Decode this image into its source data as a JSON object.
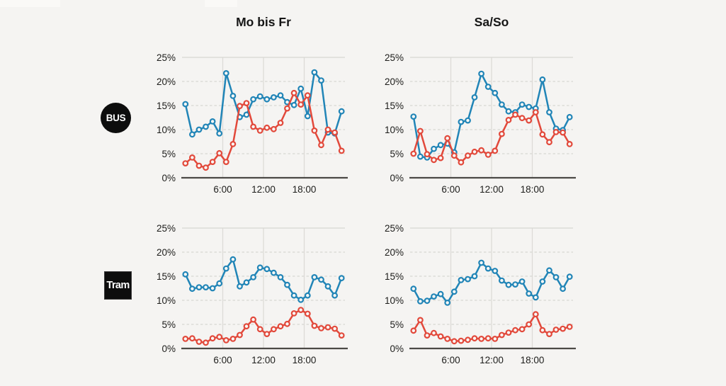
{
  "page": {
    "background_color": "#f5f4f2"
  },
  "header": {
    "columns": [
      {
        "label": "Mo bis Fr"
      },
      {
        "label": "Sa/So"
      }
    ]
  },
  "row_badges": [
    {
      "label": "BUS",
      "shape": "circle",
      "background": "#0d0d0d",
      "text_color": "#ffffff"
    },
    {
      "label": "Tram",
      "shape": "square",
      "background": "#0d0d0d",
      "text_color": "#ffffff"
    }
  ],
  "colors": {
    "blue_series": "#2185b7",
    "red_series": "#e2493b",
    "axis": "#4b4946",
    "grid": "#d8d7d3",
    "grid_vertical": "#dcdbd7",
    "text": "#1d1d1b",
    "marker_fill": "#f9f8f6"
  },
  "axes": {
    "xlim": [
      0,
      24
    ],
    "ylim": [
      0,
      25
    ],
    "x_ticks": [
      {
        "label": "6:00",
        "value": 6
      },
      {
        "label": "12:00",
        "value": 12
      },
      {
        "label": "18:00",
        "value": 18
      }
    ],
    "y_ticks": [
      {
        "label": "25%",
        "value": 25
      },
      {
        "label": "20%",
        "value": 20
      },
      {
        "label": "15%",
        "value": 15
      },
      {
        "label": "10%",
        "value": 10
      },
      {
        "label": "5%",
        "value": 5
      },
      {
        "label": "0%",
        "value": 0
      }
    ],
    "grid": "horizontal dashed gridlines at 5-20%, solid light line at 25%, solid dark baseline at 0%, vertical gridlines at x ticks"
  },
  "chart_data": [
    {
      "id": "bus-weekday",
      "type": "line",
      "row": "BUS",
      "column": "Mo bis Fr",
      "x": [
        0.5,
        1.5,
        2.5,
        3.5,
        4.5,
        5.5,
        6.5,
        7.5,
        8.5,
        9.5,
        10.5,
        11.5,
        12.5,
        13.5,
        14.5,
        15.5,
        16.5,
        17.5,
        18.5,
        19.5,
        20.5,
        21.5,
        22.5,
        23.5
      ],
      "series": [
        {
          "name": "blue",
          "color_key": "blue_series",
          "values": [
            15.3,
            9.0,
            10.0,
            10.6,
            11.7,
            9.2,
            21.7,
            17.0,
            12.6,
            13.1,
            16.3,
            16.9,
            16.3,
            16.7,
            17.1,
            15.7,
            15.1,
            18.5,
            12.8,
            21.9,
            20.2,
            9.4,
            9.2,
            13.8
          ]
        },
        {
          "name": "red",
          "color_key": "red_series",
          "values": [
            3.0,
            4.2,
            2.5,
            2.1,
            3.3,
            5.1,
            3.3,
            7.0,
            14.9,
            15.5,
            10.6,
            9.8,
            10.4,
            10.1,
            11.4,
            14.4,
            17.6,
            15.2,
            17.1,
            9.8,
            6.8,
            10.0,
            9.4,
            5.6
          ]
        }
      ]
    },
    {
      "id": "bus-weekend",
      "type": "line",
      "row": "BUS",
      "column": "Sa/So",
      "x": [
        0.5,
        1.5,
        2.5,
        3.5,
        4.5,
        5.5,
        6.5,
        7.5,
        8.5,
        9.5,
        10.5,
        11.5,
        12.5,
        13.5,
        14.5,
        15.5,
        16.5,
        17.5,
        18.5,
        19.5,
        20.5,
        21.5,
        22.5,
        23.5
      ],
      "series": [
        {
          "name": "blue",
          "color_key": "blue_series",
          "values": [
            12.7,
            4.4,
            4.2,
            6.0,
            6.8,
            7.1,
            5.3,
            11.6,
            11.9,
            16.7,
            21.6,
            18.9,
            17.6,
            15.2,
            13.8,
            13.6,
            15.2,
            14.7,
            14.4,
            20.4,
            13.6,
            10.2,
            9.9,
            12.6
          ]
        },
        {
          "name": "red",
          "color_key": "red_series",
          "values": [
            5.0,
            9.7,
            4.9,
            3.7,
            4.1,
            8.2,
            4.6,
            3.2,
            4.6,
            5.4,
            5.7,
            4.8,
            5.6,
            9.1,
            12.0,
            13.1,
            12.4,
            11.9,
            13.6,
            9.0,
            7.4,
            9.5,
            9.4,
            7.0
          ]
        }
      ]
    },
    {
      "id": "tram-weekday",
      "type": "line",
      "row": "Tram",
      "column": "Mo bis Fr",
      "x": [
        0.5,
        1.5,
        2.5,
        3.5,
        4.5,
        5.5,
        6.5,
        7.5,
        8.5,
        9.5,
        10.5,
        11.5,
        12.5,
        13.5,
        14.5,
        15.5,
        16.5,
        17.5,
        18.5,
        19.5,
        20.5,
        21.5,
        22.5,
        23.5
      ],
      "series": [
        {
          "name": "blue",
          "color_key": "blue_series",
          "values": [
            15.4,
            12.4,
            12.7,
            12.7,
            12.5,
            13.5,
            16.6,
            18.5,
            12.9,
            13.7,
            14.8,
            16.8,
            16.5,
            15.7,
            14.8,
            13.2,
            11.0,
            10.1,
            11.0,
            14.8,
            14.3,
            12.9,
            11.0,
            14.6
          ]
        },
        {
          "name": "red",
          "color_key": "red_series",
          "values": [
            2.0,
            2.1,
            1.4,
            1.2,
            2.1,
            2.4,
            1.7,
            2.0,
            2.8,
            4.6,
            6.0,
            4.0,
            3.0,
            4.0,
            4.6,
            5.1,
            7.3,
            8.0,
            7.2,
            4.7,
            4.2,
            4.4,
            4.1,
            2.7
          ]
        }
      ]
    },
    {
      "id": "tram-weekend",
      "type": "line",
      "row": "Tram",
      "column": "Sa/So",
      "x": [
        0.5,
        1.5,
        2.5,
        3.5,
        4.5,
        5.5,
        6.5,
        7.5,
        8.5,
        9.5,
        10.5,
        11.5,
        12.5,
        13.5,
        14.5,
        15.5,
        16.5,
        17.5,
        18.5,
        19.5,
        20.5,
        21.5,
        22.5,
        23.5
      ],
      "series": [
        {
          "name": "blue",
          "color_key": "blue_series",
          "values": [
            12.4,
            9.8,
            9.9,
            10.8,
            11.3,
            9.5,
            11.8,
            14.2,
            14.4,
            15.0,
            17.8,
            16.6,
            16.1,
            14.1,
            13.2,
            13.3,
            13.9,
            11.4,
            10.6,
            13.9,
            16.2,
            14.8,
            12.4,
            14.9
          ]
        },
        {
          "name": "red",
          "color_key": "red_series",
          "values": [
            3.7,
            5.9,
            2.7,
            3.2,
            2.5,
            2.0,
            1.5,
            1.6,
            1.8,
            2.1,
            2.0,
            2.1,
            2.0,
            2.8,
            3.3,
            3.8,
            4.0,
            5.0,
            7.1,
            3.8,
            3.0,
            3.9,
            4.1,
            4.5
          ]
        }
      ]
    }
  ]
}
